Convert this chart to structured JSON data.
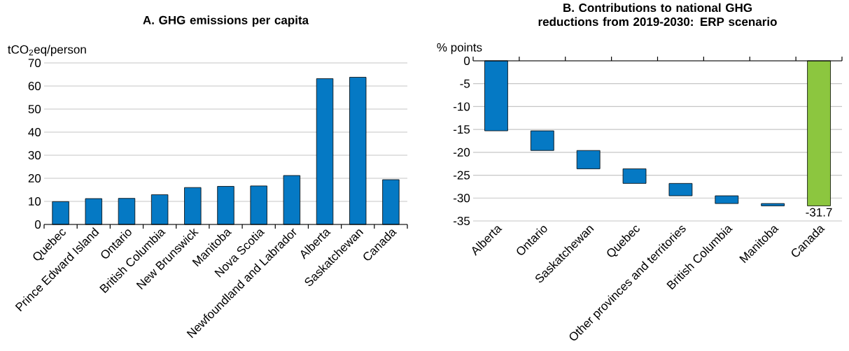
{
  "chart_data": [
    {
      "type": "bar",
      "title": "A. GHG emissions per capita",
      "ylabel": "tCO$_{2}$eq/person",
      "categories": [
        "Quebec",
        "Prince Edward Island",
        "Ontario",
        "British Columbia",
        "New Brunswick",
        "Manitoba",
        "Nova Scotia",
        "Newfoundland and Labrador",
        "Alberta",
        "Saskatchewan",
        "Canada"
      ],
      "values": [
        9.9,
        11.2,
        11.3,
        12.9,
        16.0,
        16.5,
        16.7,
        21.2,
        63.2,
        63.8,
        19.4
      ],
      "color": "#0579c4",
      "ylim": [
        0,
        70
      ],
      "yticks": [
        0,
        10,
        20,
        30,
        40,
        50,
        60,
        70
      ],
      "grid": "y"
    },
    {
      "type": "bar",
      "title": "B. Contributions to national GHG reductions from 2019-2030: ERP scenario",
      "ylabel": "% points",
      "categories": [
        "Alberta",
        "Ontario",
        "Saskatchewan",
        "Quebec",
        "Other provinces and territories",
        "British Columbia",
        "Manitoba",
        "Canada"
      ],
      "base": [
        0,
        -15.3,
        -19.6,
        -23.6,
        -26.8,
        -29.5,
        -31.2,
        0
      ],
      "values": [
        -15.3,
        -4.3,
        -4.0,
        -3.2,
        -2.7,
        -1.7,
        -0.5,
        -31.7
      ],
      "value_labels": [
        null,
        null,
        null,
        null,
        null,
        null,
        null,
        "-31.7"
      ],
      "colors": [
        "#0579c4",
        "#0579c4",
        "#0579c4",
        "#0579c4",
        "#0579c4",
        "#0579c4",
        "#0579c4",
        "#8cc63f"
      ],
      "ylim": [
        -35,
        0
      ],
      "yticks": [
        -35,
        -30,
        -25,
        -20,
        -15,
        -10,
        -5,
        0
      ],
      "grid": "y"
    }
  ]
}
